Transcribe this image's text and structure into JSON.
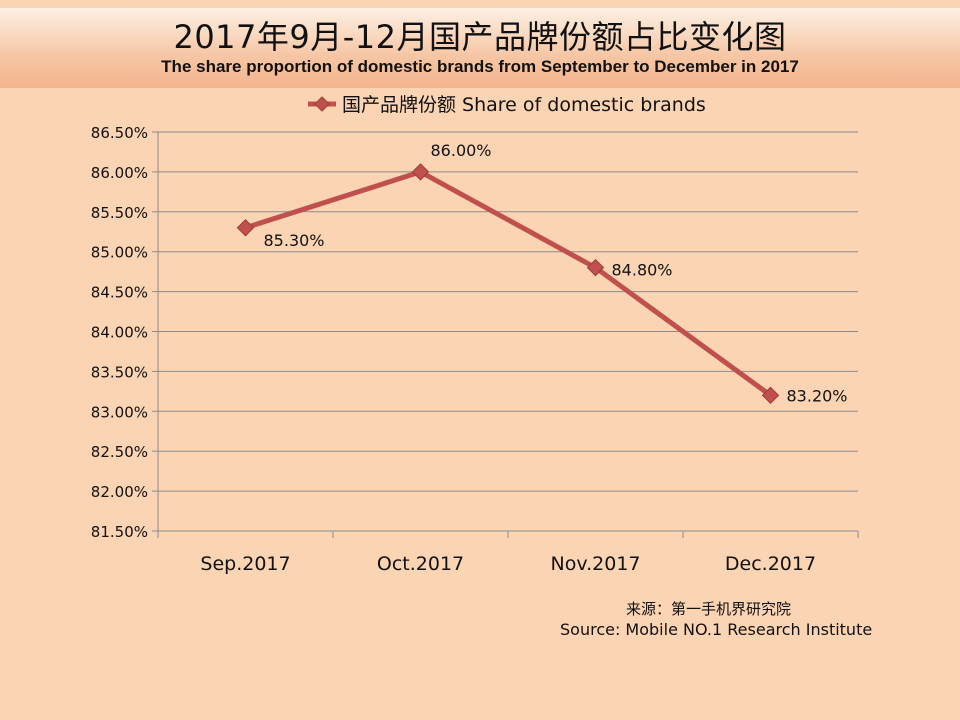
{
  "chart_data": {
    "type": "line",
    "title": "2017年9月-12月国产品牌份额占比变化图",
    "subtitle": "The share proportion of domestic brands from September to December in 2017",
    "categories": [
      "Sep.2017",
      "Oct.2017",
      "Nov.2017",
      "Dec.2017"
    ],
    "series": [
      {
        "name": "国产品牌份额 Share of domestic brands",
        "values": [
          85.3,
          86.0,
          84.8,
          83.2
        ],
        "data_labels": [
          "85.30%",
          "86.00%",
          "84.80%",
          "83.20%"
        ],
        "color": "#c0504d",
        "marker": "diamond"
      }
    ],
    "y_ticks": [
      "81.50%",
      "82.00%",
      "82.50%",
      "83.00%",
      "83.50%",
      "84.00%",
      "84.50%",
      "85.00%",
      "85.50%",
      "86.00%",
      "86.50%"
    ],
    "ylim": [
      81.5,
      86.5
    ],
    "grid": true,
    "legend_position": "top"
  },
  "source": {
    "cn": "来源：第一手机界研究院",
    "en": "Source: Mobile NO.1 Research Institute"
  }
}
